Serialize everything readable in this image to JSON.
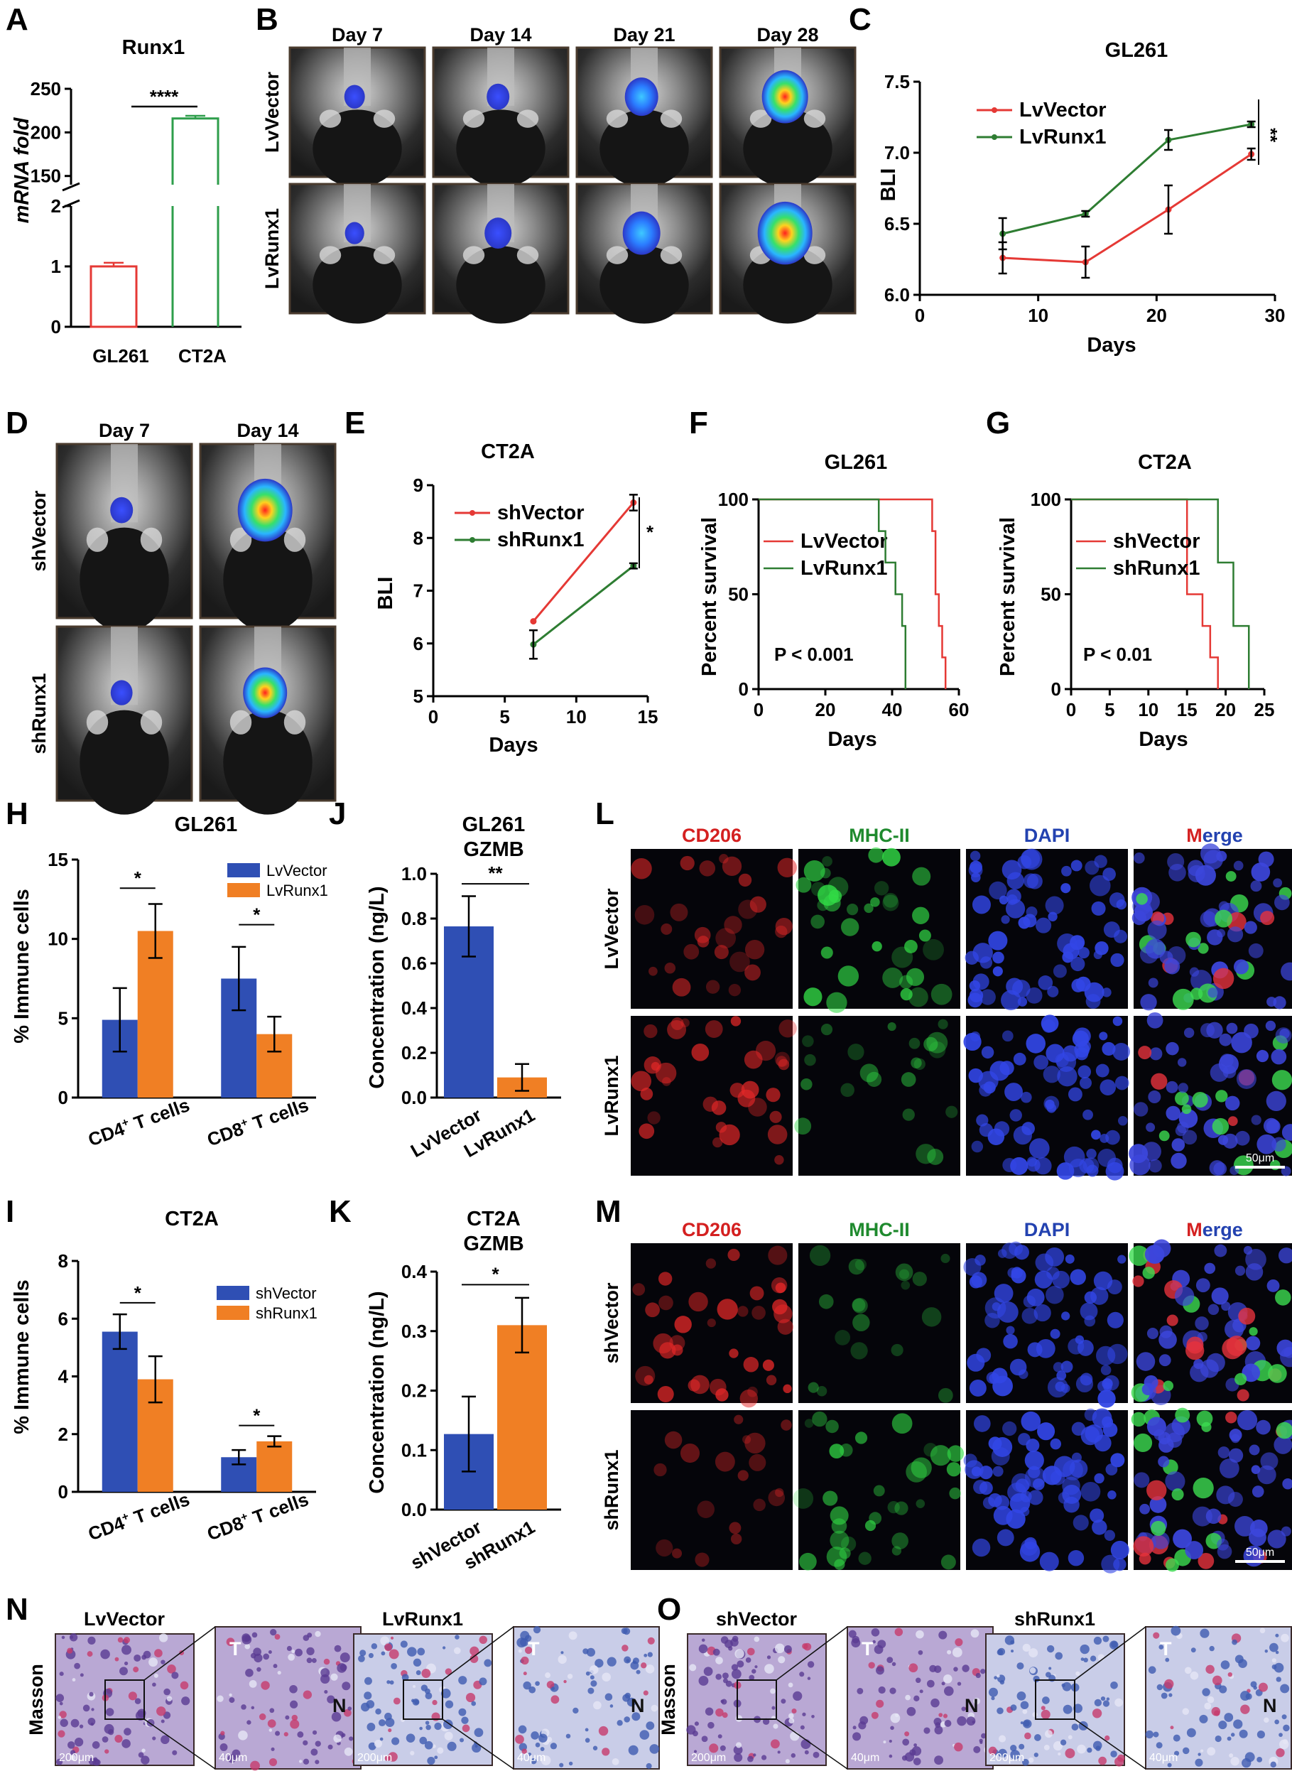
{
  "panels": {
    "A": "A",
    "B": "B",
    "C": "C",
    "D": "D",
    "E": "E",
    "F": "F",
    "G": "G",
    "H": "H",
    "I": "I",
    "J": "J",
    "K": "K",
    "L": "L",
    "M": "M",
    "N": "N",
    "O": "O"
  },
  "imaging_B": {
    "columns": [
      "Day 7",
      "Day 14",
      "Day 21",
      "Day 28"
    ],
    "rows": [
      "LvVector",
      "LvRunx1"
    ],
    "signal_level": [
      [
        0.15,
        0.2,
        0.45,
        0.75
      ],
      [
        0.12,
        0.3,
        0.55,
        0.95
      ]
    ]
  },
  "imaging_D": {
    "columns": [
      "Day 7",
      "Day 14"
    ],
    "rows": [
      "shVector",
      "shRunx1"
    ],
    "signal_level": [
      [
        0.2,
        0.95
      ],
      [
        0.18,
        0.7
      ]
    ]
  },
  "if_L": {
    "columns": [
      {
        "label": "CD206",
        "color": "#d42020"
      },
      {
        "label": "MHC-II",
        "color": "#1f8a2e"
      },
      {
        "label": "DAPI",
        "color": "#2342b0"
      },
      {
        "label_first": "M",
        "label_rest": "erge",
        "color_first": "#d42020",
        "color_rest": "#2342b0"
      }
    ],
    "rows": [
      "LvVector",
      "LvRunx1"
    ],
    "scale_bar": "50μm"
  },
  "if_M": {
    "columns": [
      {
        "label": "CD206",
        "color": "#d42020"
      },
      {
        "label": "MHC-II",
        "color": "#1f8a2e"
      },
      {
        "label": "DAPI",
        "color": "#2342b0"
      },
      {
        "label_first": "M",
        "label_rest": "erge",
        "color_first": "#d42020",
        "color_rest": "#2342b0"
      }
    ],
    "rows": [
      "shVector",
      "shRunx1"
    ],
    "scale_bar": "50μm"
  },
  "masson_N": {
    "row_label": "Masson",
    "groups": [
      "LvVector",
      "LvRunx1"
    ],
    "scale_low": "200μm",
    "scale_high": "40μm",
    "markers": [
      "T",
      "N"
    ]
  },
  "masson_O": {
    "row_label": "Masson",
    "groups": [
      "shVector",
      "shRunx1"
    ],
    "scale_low": "200μm",
    "scale_high": "40μm",
    "markers": [
      "T",
      "N"
    ]
  },
  "chart_data": [
    {
      "id": "A",
      "type": "bar",
      "title": "Runx1",
      "categories": [
        "GL261",
        "CT2A"
      ],
      "values": [
        1.0,
        216
      ],
      "errors": [
        0.06,
        3
      ],
      "colors": [
        "#e53935",
        "#2e9e4b"
      ],
      "ylabel": "mRNA fold",
      "y_ticks_low": [
        "0",
        "1",
        "2"
      ],
      "y_ticks_high": [
        "150",
        "200",
        "250"
      ],
      "axis_break": [
        2,
        140
      ],
      "significance": "****"
    },
    {
      "id": "C",
      "type": "line",
      "title": "GL261",
      "xlabel": "Days",
      "ylabel": "BLI",
      "xlim": [
        0,
        30
      ],
      "ylim": [
        6.0,
        7.5
      ],
      "x_ticks": [
        "0",
        "10",
        "20",
        "30"
      ],
      "y_ticks": [
        "6.0",
        "6.5",
        "7.0",
        "7.5"
      ],
      "series": [
        {
          "name": "LvVector",
          "color": "#e53935",
          "x": [
            7,
            14,
            21,
            28
          ],
          "y": [
            6.26,
            6.23,
            6.6,
            6.99
          ],
          "err": [
            0.11,
            0.11,
            0.17,
            0.04
          ]
        },
        {
          "name": "LvRunx1",
          "color": "#2e7d32",
          "x": [
            7,
            14,
            21,
            28
          ],
          "y": [
            6.43,
            6.57,
            7.09,
            7.2
          ],
          "err": [
            0.11,
            0.02,
            0.07,
            0.02
          ]
        }
      ],
      "significance": "**"
    },
    {
      "id": "E",
      "type": "line",
      "title": "CT2A",
      "xlabel": "Days",
      "ylabel": "BLI",
      "xlim": [
        0,
        15
      ],
      "ylim": [
        5,
        9
      ],
      "x_ticks": [
        "0",
        "5",
        "10",
        "15"
      ],
      "y_ticks": [
        "5",
        "6",
        "7",
        "8",
        "9"
      ],
      "series": [
        {
          "name": "shVector",
          "color": "#e53935",
          "x": [
            7,
            14
          ],
          "y": [
            6.42,
            8.67
          ],
          "err": [
            0,
            0.15
          ]
        },
        {
          "name": "shRunx1",
          "color": "#2e7d32",
          "x": [
            7,
            14
          ],
          "y": [
            5.98,
            7.47
          ],
          "err": [
            0.27,
            0.05
          ]
        }
      ],
      "significance": "*"
    },
    {
      "id": "F",
      "type": "line",
      "title": "GL261",
      "xlabel": "Days",
      "ylabel": "Percent survival",
      "xlim": [
        0,
        60
      ],
      "ylim": [
        0,
        100
      ],
      "x_ticks": [
        "0",
        "20",
        "40",
        "60"
      ],
      "y_ticks": [
        "0",
        "50",
        "100"
      ],
      "series": [
        {
          "name": "LvVector",
          "color": "#e53935",
          "x": [
            0,
            52,
            52,
            53,
            53,
            54,
            54,
            55,
            55,
            56,
            56
          ],
          "y": [
            100,
            100,
            83.3,
            83.3,
            50,
            50,
            33.3,
            33.3,
            16.7,
            16.7,
            0
          ]
        },
        {
          "name": "LvRunx1",
          "color": "#2e7d32",
          "x": [
            0,
            36,
            36,
            38,
            38,
            41,
            41,
            43,
            43,
            44,
            44
          ],
          "y": [
            100,
            100,
            83.3,
            83.3,
            66.7,
            66.7,
            50,
            50,
            33.3,
            33.3,
            0
          ]
        }
      ],
      "annotation": "P < 0.001"
    },
    {
      "id": "G",
      "type": "line",
      "title": "CT2A",
      "xlabel": "Days",
      "ylabel": "Percent survival",
      "xlim": [
        0,
        25
      ],
      "ylim": [
        0,
        100
      ],
      "x_ticks": [
        "0",
        "5",
        "10",
        "15",
        "20",
        "25"
      ],
      "y_ticks": [
        "0",
        "50",
        "100"
      ],
      "series": [
        {
          "name": "shVector",
          "color": "#e53935",
          "x": [
            0,
            15,
            15,
            17,
            17,
            18,
            18,
            19,
            19
          ],
          "y": [
            100,
            100,
            50,
            50,
            33.3,
            33.3,
            16.7,
            16.7,
            0
          ]
        },
        {
          "name": "shRunx1",
          "color": "#2e7d32",
          "x": [
            0,
            19,
            19,
            21,
            21,
            23,
            23
          ],
          "y": [
            100,
            100,
            66.7,
            66.7,
            33.3,
            33.3,
            0
          ]
        }
      ],
      "annotation": "P < 0.01"
    },
    {
      "id": "H",
      "type": "bar",
      "title": "GL261",
      "categories_html": [
        [
          "CD4",
          "+",
          " T cells"
        ],
        [
          "CD8",
          "+",
          " T cells"
        ]
      ],
      "ylabel": "% Immune cells",
      "ylim": [
        0,
        15
      ],
      "y_ticks": [
        "0",
        "5",
        "10",
        "15"
      ],
      "series": [
        {
          "name": "LvVector",
          "color": "#2f4fb4",
          "values": [
            4.9,
            7.5
          ],
          "err": [
            2.0,
            2.0
          ]
        },
        {
          "name": "LvRunx1",
          "color": "#f07f24",
          "values": [
            10.5,
            4.0
          ],
          "err": [
            1.7,
            1.1
          ]
        }
      ],
      "significance": [
        "*",
        "*"
      ]
    },
    {
      "id": "I",
      "type": "bar",
      "title": "CT2A",
      "categories_html": [
        [
          "CD4",
          "+",
          " T cells"
        ],
        [
          "CD8",
          "+",
          " T cells"
        ]
      ],
      "ylabel": "% Immune cells",
      "ylim": [
        0,
        8
      ],
      "y_ticks": [
        "0",
        "2",
        "4",
        "6",
        "8"
      ],
      "series": [
        {
          "name": "shVector",
          "color": "#2f4fb4",
          "values": [
            5.55,
            1.2
          ],
          "err": [
            0.6,
            0.25
          ]
        },
        {
          "name": "shRunx1",
          "color": "#f07f24",
          "values": [
            3.9,
            1.75
          ],
          "err": [
            0.8,
            0.18
          ]
        }
      ],
      "significance": [
        "*",
        "*"
      ]
    },
    {
      "id": "J",
      "type": "bar",
      "title": [
        "GL261",
        "GZMB"
      ],
      "categories": [
        "LvVector",
        "LvRunx1"
      ],
      "values": [
        0.765,
        0.09
      ],
      "errors": [
        0.135,
        0.06
      ],
      "colors": [
        "#2f4fb4",
        "#f07f24"
      ],
      "ylabel": "Concentration (ng/L)",
      "ylim": [
        0,
        1.0
      ],
      "y_ticks": [
        "0.0",
        "0.2",
        "0.4",
        "0.6",
        "0.8",
        "1.0"
      ],
      "significance": "**"
    },
    {
      "id": "K",
      "type": "bar",
      "title": [
        "CT2A",
        "GZMB"
      ],
      "categories": [
        "shVector",
        "shRunx1"
      ],
      "values": [
        0.127,
        0.31
      ],
      "errors": [
        0.063,
        0.046
      ],
      "colors": [
        "#2f4fb4",
        "#f07f24"
      ],
      "ylabel": "Concentration (ng/L)",
      "ylim": [
        0,
        0.4
      ],
      "y_ticks": [
        "0.0",
        "0.1",
        "0.2",
        "0.3",
        "0.4"
      ],
      "significance": "*"
    }
  ]
}
